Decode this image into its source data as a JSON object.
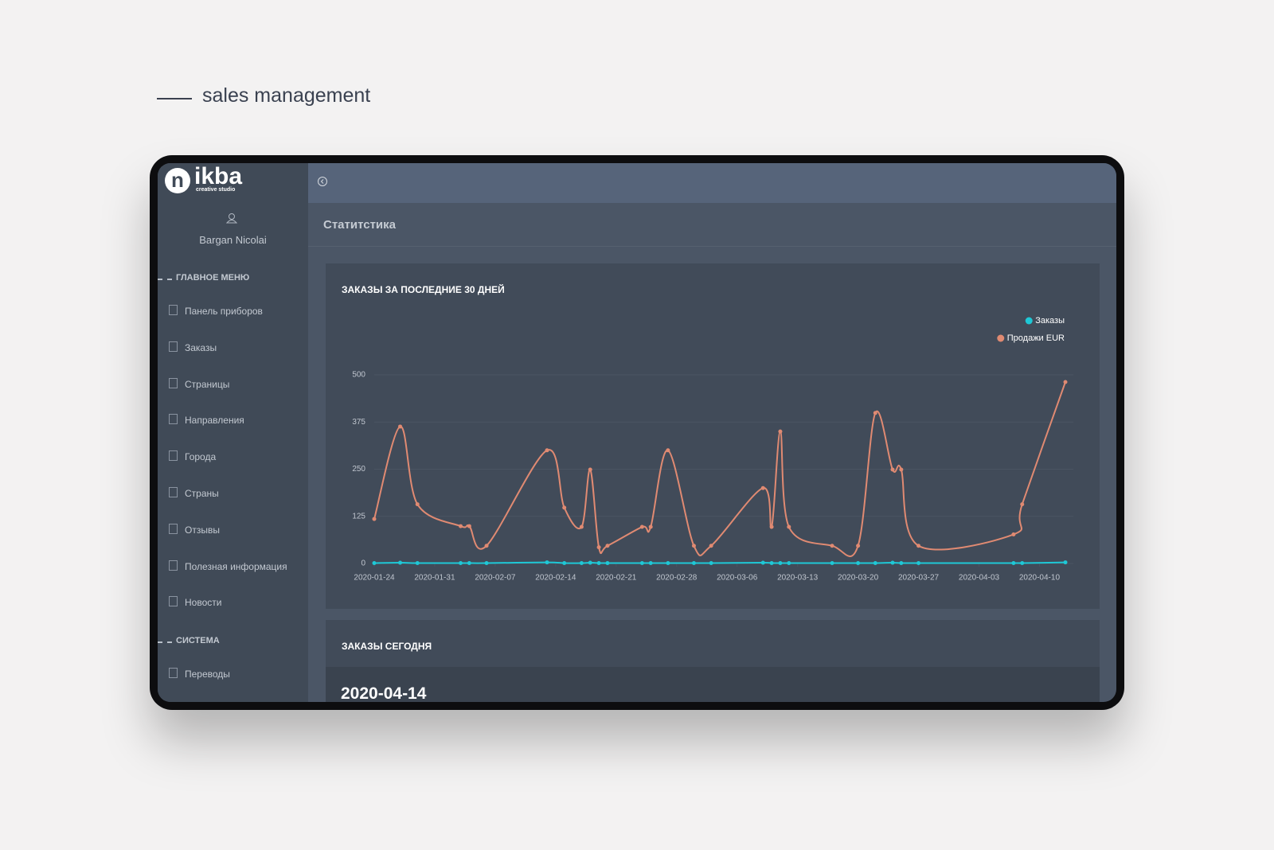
{
  "header": {
    "title": "sales management"
  },
  "sidebar": {
    "logo_mark": "n",
    "logo": "ikba",
    "logo_subtitle": "creative studio",
    "user": "Bargan Nicolai",
    "sections": [
      {
        "title": "ГЛАВНОЕ МЕНЮ",
        "items": [
          "Панель приборов",
          "Заказы",
          "Страницы",
          "Направления",
          "Города",
          "Страны",
          "Отзывы",
          "Полезная информация",
          "Новости"
        ]
      },
      {
        "title": "СИСТЕМА",
        "items": [
          "Переводы"
        ]
      }
    ]
  },
  "page_title": "Статитстика",
  "chart_data": {
    "type": "line",
    "title": "ЗАКАЗЫ ЗА ПОСЛЕДНИЕ 30 ДНЕЙ",
    "x": [
      "2020-01-24",
      "2020-01-27",
      "2020-01-29",
      "2020-02-03",
      "2020-02-04",
      "2020-02-06",
      "2020-02-13",
      "2020-02-15",
      "2020-02-17",
      "2020-02-18",
      "2020-02-19",
      "2020-02-20",
      "2020-02-24",
      "2020-02-25",
      "2020-02-27",
      "2020-03-01",
      "2020-03-03",
      "2020-03-09",
      "2020-03-10",
      "2020-03-11",
      "2020-03-12",
      "2020-03-17",
      "2020-03-20",
      "2020-03-22",
      "2020-03-24",
      "2020-03-25",
      "2020-03-27",
      "2020-04-07",
      "2020-04-08",
      "2020-04-13"
    ],
    "series": [
      {
        "name": "Заказы",
        "color": "#1ec8d6",
        "values": [
          1,
          2,
          1,
          1,
          1,
          1,
          3,
          1,
          1,
          2,
          1,
          1,
          1,
          1,
          1,
          1,
          1,
          2,
          1,
          1,
          1,
          1,
          1,
          1,
          2,
          1,
          1,
          1,
          1,
          3
        ]
      },
      {
        "name": "Продажи EUR",
        "color": "#e08a72",
        "values": [
          118,
          363,
          157,
          99,
          99,
          47,
          300,
          148,
          97,
          249,
          43,
          47,
          97,
          97,
          300,
          47,
          47,
          200,
          97,
          350,
          97,
          47,
          47,
          399,
          249,
          249,
          47,
          77,
          157,
          481
        ]
      }
    ],
    "xlim": [
      "2020-01-24",
      "2020-04-13"
    ],
    "xticks": [
      "2020-01-24",
      "2020-01-31",
      "2020-02-07",
      "2020-02-14",
      "2020-02-21",
      "2020-02-28",
      "2020-03-06",
      "2020-03-13",
      "2020-03-20",
      "2020-03-27",
      "2020-04-03",
      "2020-04-10"
    ],
    "ylim": [
      0,
      500
    ],
    "yticks": [
      0,
      125,
      250,
      375,
      500
    ],
    "grid": true,
    "legend": "top-right"
  },
  "today": {
    "title": "ЗАКАЗЫ СЕГОДНЯ",
    "date": "2020-04-14"
  }
}
